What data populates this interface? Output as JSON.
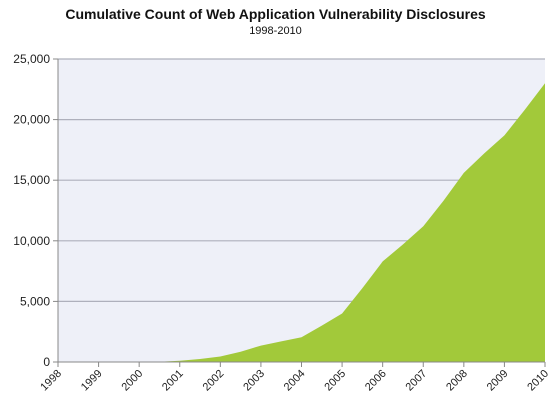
{
  "chart_data": {
    "type": "area",
    "title": "Cumulative Count of Web Application Vulnerability Disclosures",
    "subtitle": "1998-2010",
    "xlabel": "",
    "ylabel": "",
    "x_tick_labels": [
      "1998",
      "1999",
      "2000",
      "2001",
      "2002",
      "2003",
      "2004",
      "2005",
      "2006",
      "2007",
      "2008",
      "2009",
      "2010"
    ],
    "y_tick_labels": [
      "0",
      "5,000",
      "10,000",
      "15,000",
      "20,000",
      "25,000"
    ],
    "xlim": [
      1998,
      2010
    ],
    "ylim": [
      0,
      25000
    ],
    "grid": "horizontal",
    "legend": "none",
    "colors": {
      "fill": "#a2c93a",
      "plot_background": "#eef0f8",
      "grid": "#aeb0bc",
      "axis": "#888888"
    },
    "series": [
      {
        "x": [
          1998,
          1999,
          2000,
          2000.5,
          2001,
          2001.5,
          2002,
          2002.5,
          2003,
          2003.5,
          2004,
          2004.5,
          2005,
          2005.5,
          2006,
          2006.5,
          2007,
          2007.5,
          2008,
          2008.5,
          2009,
          2009.5,
          2010
        ],
        "values": [
          0,
          0,
          0,
          20,
          100,
          250,
          450,
          850,
          1350,
          1700,
          2050,
          3000,
          4000,
          6100,
          8300,
          9700,
          11200,
          13300,
          15600,
          17200,
          18700,
          20800,
          23000
        ]
      }
    ]
  }
}
